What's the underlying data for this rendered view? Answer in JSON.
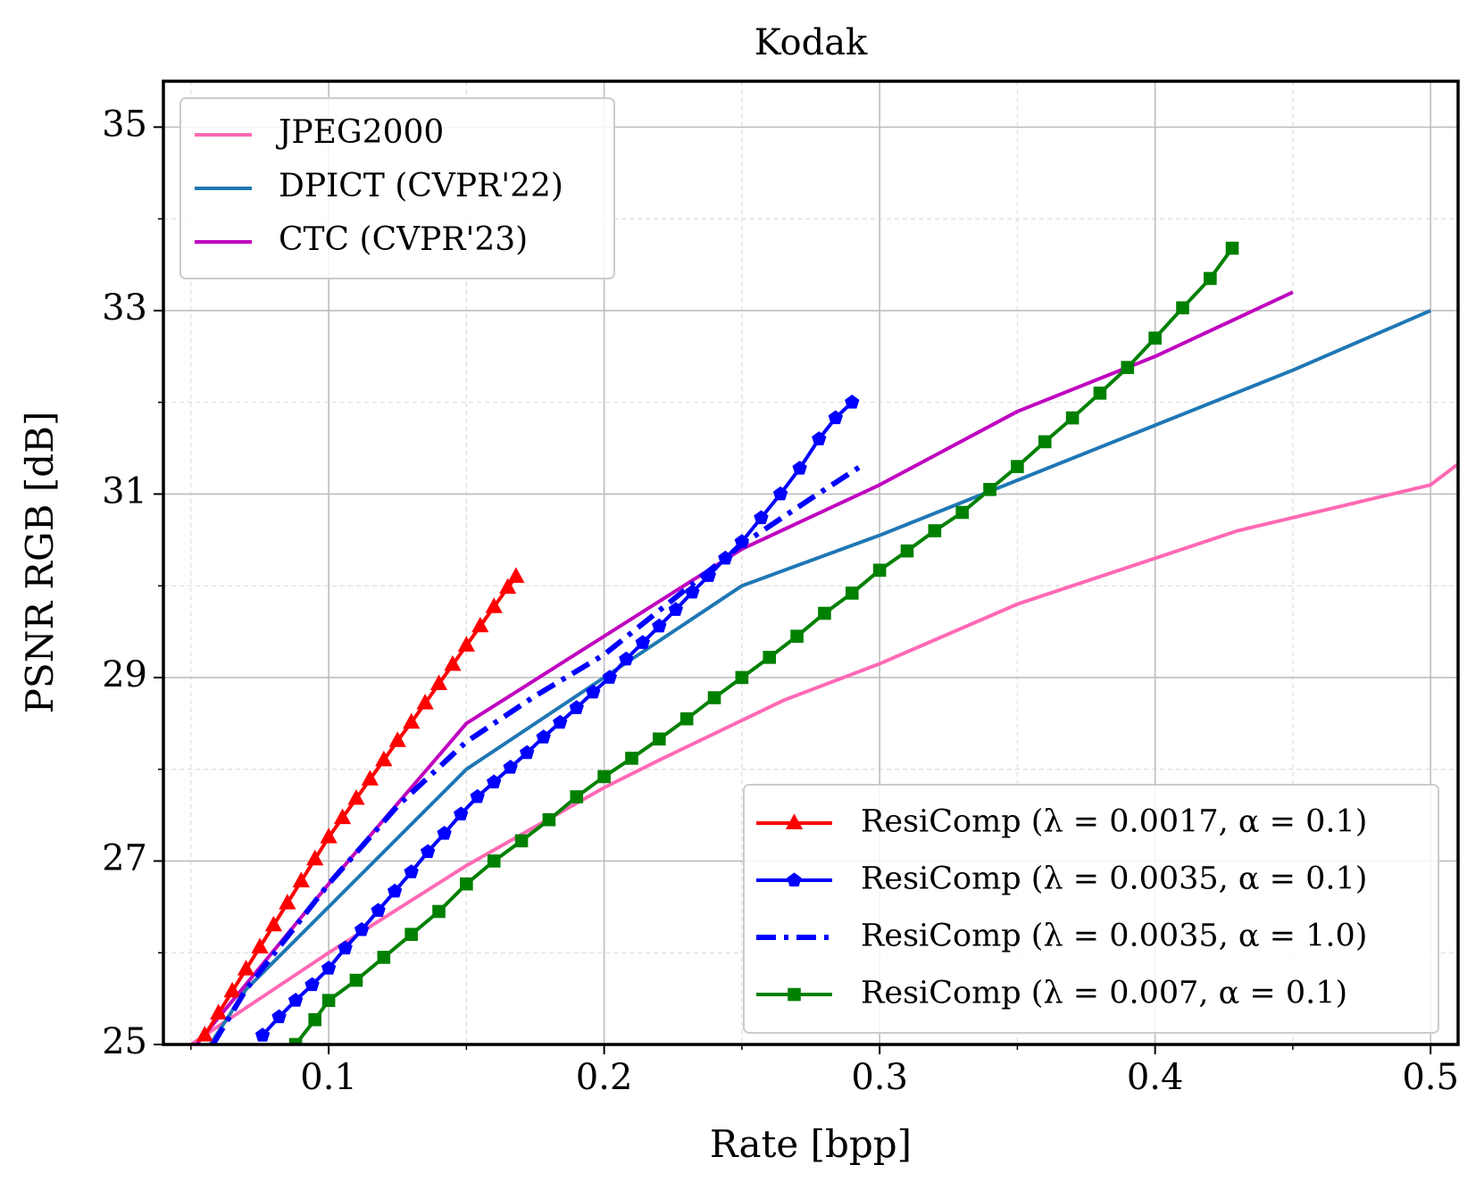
{
  "chart_data": {
    "type": "line",
    "title": "Kodak",
    "x_label": "Rate [bpp]",
    "y_label": "PSNR RGB [dB]",
    "xlim": [
      0.04,
      0.51
    ],
    "ylim": [
      25,
      35.5
    ],
    "xticks": [
      0.1,
      0.2,
      0.3,
      0.4,
      0.5
    ],
    "yticks": [
      25,
      27,
      29,
      31,
      33,
      35
    ],
    "xminorticks": [
      0.05,
      0.15,
      0.25,
      0.35,
      0.45
    ],
    "yminorticks": [
      26,
      28,
      30,
      32,
      34
    ],
    "grid": true,
    "minor_grid": true,
    "series": [
      {
        "name": "JPEG2000",
        "color": "#ff69b4",
        "linestyle": "solid",
        "marker": "none",
        "legend": "upper left",
        "x": [
          0.05,
          0.1,
          0.15,
          0.2,
          0.22,
          0.265,
          0.3,
          0.35,
          0.43,
          0.5,
          0.511
        ],
        "values": [
          25,
          26,
          26.95,
          27.8,
          28.1,
          28.75,
          29.15,
          29.8,
          30.6,
          31.1,
          31.35
        ]
      },
      {
        "name": "DPICT (CVPR'22)",
        "color": "#1f77b4",
        "linestyle": "solid",
        "marker": "none",
        "legend": "upper left",
        "x": [
          0.057,
          0.07,
          0.1,
          0.15,
          0.2,
          0.25,
          0.3,
          0.35,
          0.4,
          0.45,
          0.5
        ],
        "values": [
          25,
          25.6,
          26.5,
          28.0,
          29.0,
          30.0,
          30.55,
          31.15,
          31.75,
          32.35,
          33.0
        ]
      },
      {
        "name": "CTC (CVPR'23)",
        "color": "#bf00bf",
        "linestyle": "solid",
        "marker": "none",
        "legend": "upper left",
        "x": [
          0.052,
          0.1,
          0.15,
          0.2,
          0.25,
          0.3,
          0.35,
          0.4,
          0.45
        ],
        "values": [
          25,
          26.75,
          28.5,
          29.45,
          30.4,
          31.1,
          31.9,
          32.5,
          33.2
        ]
      },
      {
        "name": "ResiComp (λ = 0.0017, α = 0.1)",
        "color": "#ff0000",
        "linestyle": "solid",
        "marker": "triangle",
        "legend": "lower right",
        "x": [
          0.055,
          0.06,
          0.065,
          0.07,
          0.075,
          0.08,
          0.085,
          0.09,
          0.095,
          0.1,
          0.105,
          0.11,
          0.115,
          0.12,
          0.125,
          0.13,
          0.135,
          0.14,
          0.145,
          0.15,
          0.155,
          0.16,
          0.165,
          0.168
        ],
        "values": [
          25.1,
          25.34,
          25.58,
          25.82,
          26.06,
          26.3,
          26.54,
          26.78,
          27.02,
          27.26,
          27.47,
          27.68,
          27.89,
          28.1,
          28.31,
          28.51,
          28.72,
          28.93,
          29.14,
          29.35,
          29.56,
          29.77,
          29.98,
          30.1
        ]
      },
      {
        "name": "ResiComp (λ = 0.0035, α = 0.1)",
        "color": "#0000ff",
        "linestyle": "solid",
        "marker": "pentagon",
        "legend": "lower right",
        "x": [
          0.076,
          0.082,
          0.088,
          0.094,
          0.1,
          0.106,
          0.112,
          0.118,
          0.124,
          0.13,
          0.136,
          0.142,
          0.148,
          0.154,
          0.16,
          0.166,
          0.172,
          0.178,
          0.184,
          0.19,
          0.196,
          0.202,
          0.208,
          0.214,
          0.22,
          0.226,
          0.232,
          0.238,
          0.244,
          0.25,
          0.257,
          0.264,
          0.271,
          0.278,
          0.284,
          0.29
        ],
        "values": [
          25.1,
          25.3,
          25.48,
          25.65,
          25.83,
          26.05,
          26.25,
          26.46,
          26.67,
          26.88,
          27.1,
          27.3,
          27.51,
          27.7,
          27.86,
          28.02,
          28.18,
          28.35,
          28.51,
          28.67,
          28.84,
          29.0,
          29.2,
          29.38,
          29.56,
          29.74,
          29.93,
          30.11,
          30.3,
          30.48,
          30.74,
          31.0,
          31.28,
          31.6,
          31.83,
          32.0
        ]
      },
      {
        "name": "ResiComp (λ = 0.0035, α = 1.0)",
        "color": "#0000ff",
        "linestyle": "dashdot",
        "marker": "none",
        "legend": "lower right",
        "x": [
          0.058,
          0.07,
          0.1,
          0.125,
          0.15,
          0.175,
          0.2,
          0.225,
          0.25,
          0.275,
          0.293
        ],
        "values": [
          25,
          25.6,
          26.75,
          27.6,
          28.3,
          28.8,
          29.25,
          29.85,
          30.45,
          30.95,
          31.3
        ]
      },
      {
        "name": "ResiComp (λ = 0.007, α = 0.1)",
        "color": "#008000",
        "linestyle": "solid",
        "marker": "square",
        "legend": "lower right",
        "x": [
          0.088,
          0.095,
          0.1,
          0.11,
          0.12,
          0.13,
          0.14,
          0.15,
          0.16,
          0.17,
          0.18,
          0.19,
          0.2,
          0.21,
          0.22,
          0.23,
          0.24,
          0.25,
          0.26,
          0.27,
          0.28,
          0.29,
          0.3,
          0.31,
          0.32,
          0.33,
          0.34,
          0.35,
          0.36,
          0.37,
          0.38,
          0.39,
          0.4,
          0.41,
          0.42,
          0.428
        ],
        "values": [
          25.0,
          25.27,
          25.48,
          25.7,
          25.95,
          26.2,
          26.45,
          26.75,
          27.0,
          27.22,
          27.45,
          27.7,
          27.92,
          28.12,
          28.33,
          28.55,
          28.78,
          29.0,
          29.22,
          29.45,
          29.7,
          29.92,
          30.17,
          30.38,
          30.6,
          30.8,
          31.05,
          31.3,
          31.57,
          31.83,
          32.1,
          32.38,
          32.7,
          33.03,
          33.35,
          33.68
        ]
      }
    ]
  }
}
